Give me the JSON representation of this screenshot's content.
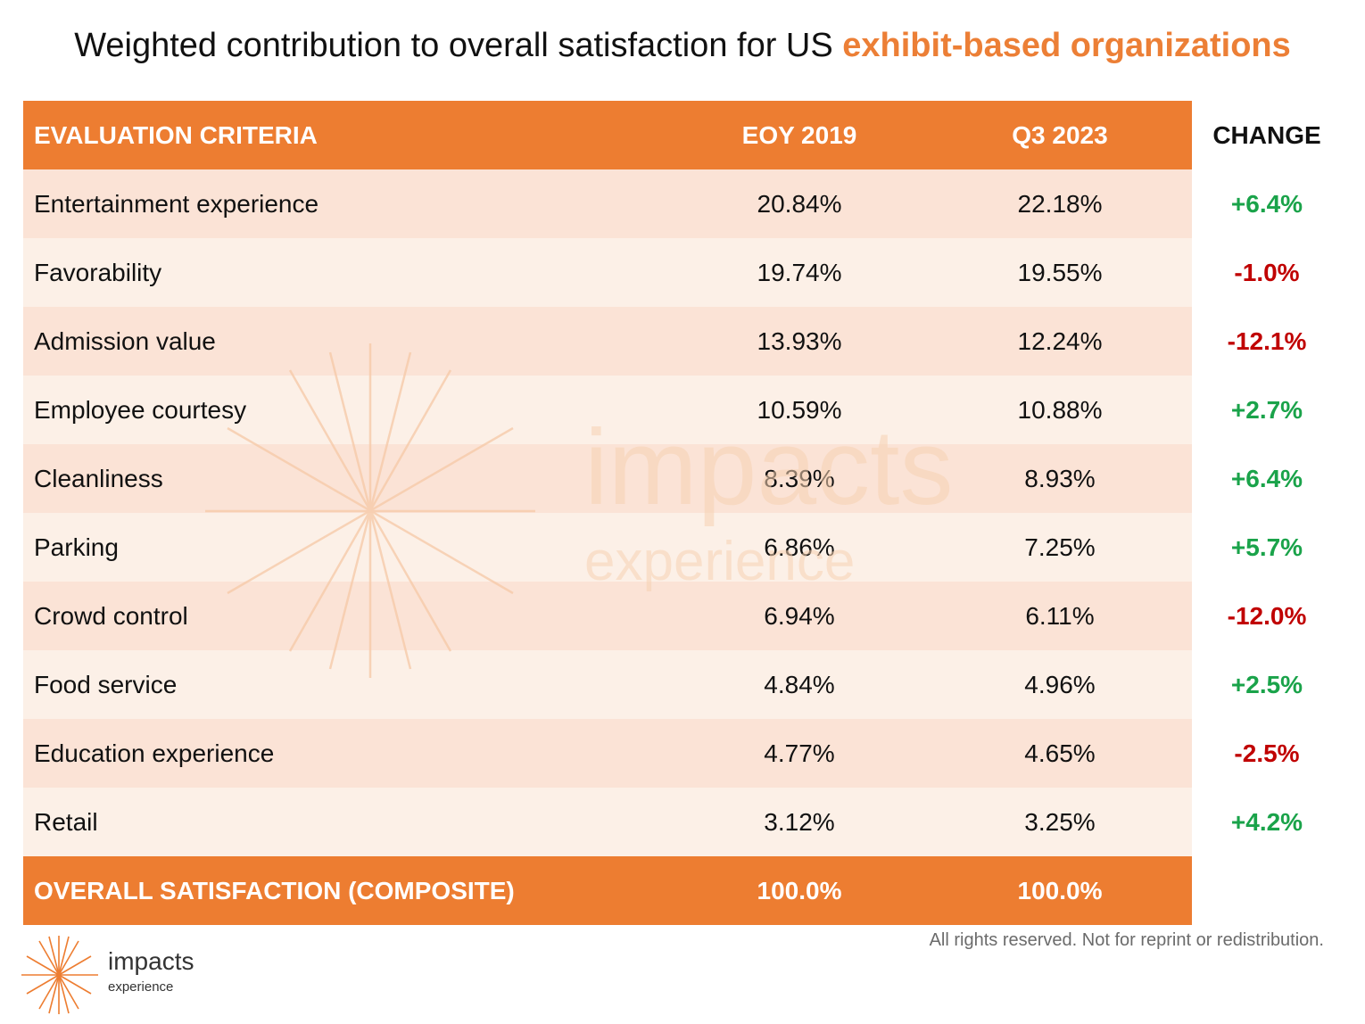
{
  "title": {
    "prefix": "Weighted contribution to overall satisfaction for US ",
    "highlight": "exhibit-based organizations"
  },
  "colors": {
    "accent": "#ed7d31",
    "row_odd": "#fbe3d6",
    "row_even": "#fcf0e7",
    "positive": "#1aa34a",
    "negative": "#c00000"
  },
  "chart_data": {
    "type": "table",
    "columns": [
      "EVALUATION CRITERIA",
      "EOY 2019",
      "Q3 2023",
      "CHANGE"
    ],
    "rows": [
      {
        "criteria": "Entertainment experience",
        "eoy2019": "20.84%",
        "q32023": "22.18%",
        "change": "+6.4%"
      },
      {
        "criteria": "Favorability",
        "eoy2019": "19.74%",
        "q32023": "19.55%",
        "change": "-1.0%"
      },
      {
        "criteria": "Admission value",
        "eoy2019": "13.93%",
        "q32023": "12.24%",
        "change": "-12.1%"
      },
      {
        "criteria": "Employee courtesy",
        "eoy2019": "10.59%",
        "q32023": "10.88%",
        "change": "+2.7%"
      },
      {
        "criteria": "Cleanliness",
        "eoy2019": "8.39%",
        "q32023": "8.93%",
        "change": "+6.4%"
      },
      {
        "criteria": "Parking",
        "eoy2019": "6.86%",
        "q32023": "7.25%",
        "change": "+5.7%"
      },
      {
        "criteria": "Crowd control",
        "eoy2019": "6.94%",
        "q32023": "6.11%",
        "change": "-12.0%"
      },
      {
        "criteria": "Food service",
        "eoy2019": "4.84%",
        "q32023": "4.96%",
        "change": "+2.5%"
      },
      {
        "criteria": "Education experience",
        "eoy2019": "4.77%",
        "q32023": "4.65%",
        "change": "-2.5%"
      },
      {
        "criteria": "Retail",
        "eoy2019": "3.12%",
        "q32023": "3.25%",
        "change": "+4.2%"
      }
    ],
    "total": {
      "criteria": "OVERALL SATISFACTION (COMPOSITE)",
      "eoy2019": "100.0%",
      "q32023": "100.0%"
    }
  },
  "watermark": {
    "line1": "impacts",
    "line2": "experience"
  },
  "logo": {
    "name": "impacts",
    "sub": "experience"
  },
  "footnote": "All rights reserved. Not for reprint or redistribution."
}
